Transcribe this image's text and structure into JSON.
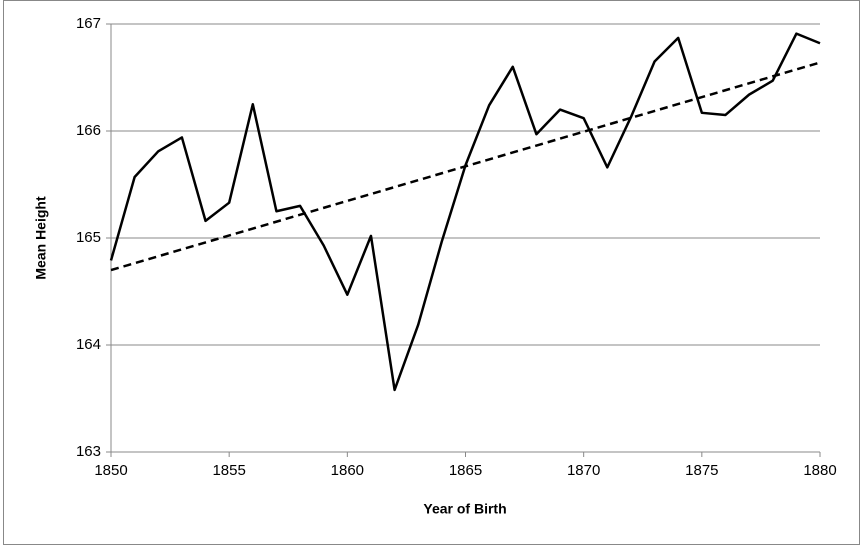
{
  "chart_data": {
    "type": "line",
    "x_label": "Year of Birth",
    "y_label": "Mean Height",
    "x": [
      1850,
      1851,
      1852,
      1853,
      1854,
      1855,
      1856,
      1857,
      1858,
      1859,
      1860,
      1861,
      1862,
      1863,
      1864,
      1865,
      1866,
      1867,
      1868,
      1869,
      1870,
      1871,
      1872,
      1873,
      1874,
      1875,
      1876,
      1877,
      1878,
      1879,
      1880
    ],
    "series": [
      {
        "color": "#000000",
        "dashed": false,
        "values": [
          164.79,
          165.57,
          165.81,
          165.94,
          165.16,
          165.33,
          166.25,
          165.25,
          165.3,
          164.93,
          164.47,
          165.02,
          163.58,
          164.19,
          164.97,
          165.68,
          166.24,
          166.6,
          165.97,
          166.2,
          166.12,
          165.66,
          166.13,
          166.65,
          166.87,
          166.17,
          166.15,
          166.34,
          166.47,
          166.91,
          166.82
        ]
      },
      {
        "color": "#000000",
        "dashed": true,
        "x": [
          1850,
          1880
        ],
        "values": [
          164.7,
          166.64
        ]
      }
    ],
    "xlim": [
      1850,
      1880
    ],
    "xticks": [
      1850,
      1855,
      1860,
      1865,
      1870,
      1875,
      1880
    ],
    "ylim": [
      163,
      167
    ],
    "yticks": [
      163,
      164,
      165,
      166,
      167
    ],
    "grid": true
  }
}
